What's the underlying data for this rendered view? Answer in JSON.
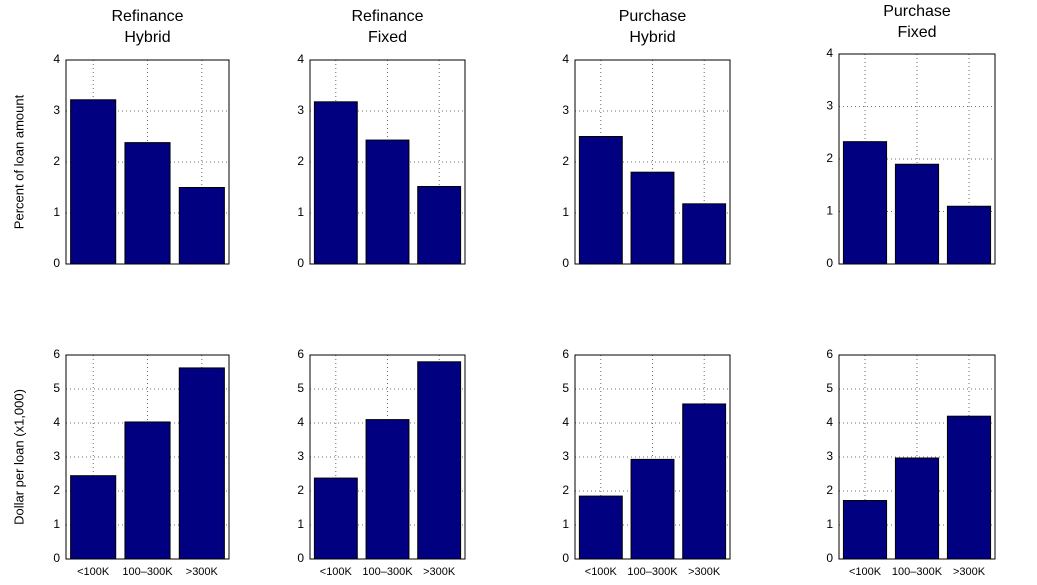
{
  "chart_data": [
    {
      "type": "bar",
      "title": [
        "Refinance",
        "Hybrid"
      ],
      "ylabel": "Percent of loan amount",
      "categories": [
        null,
        null,
        null
      ],
      "values": [
        3.22,
        2.38,
        1.5
      ],
      "color": "#000080",
      "ylim": [
        0,
        4
      ],
      "yticks": [
        0,
        1,
        2,
        3,
        4
      ],
      "grid": true
    },
    {
      "type": "bar",
      "title": [
        "Refinance",
        "Fixed"
      ],
      "categories": [
        null,
        null,
        null
      ],
      "values": [
        3.18,
        2.43,
        1.52
      ],
      "color": "#000080",
      "ylim": [
        0,
        4
      ],
      "yticks": [
        0,
        1,
        2,
        3,
        4
      ],
      "grid": true
    },
    {
      "type": "bar",
      "title": [
        "Purchase",
        "Hybrid"
      ],
      "categories": [
        null,
        null,
        null
      ],
      "values": [
        2.5,
        1.8,
        1.18
      ],
      "color": "#000080",
      "ylim": [
        0,
        4
      ],
      "yticks": [
        0,
        1,
        2,
        3,
        4
      ],
      "grid": true
    },
    {
      "type": "bar",
      "title": [
        "Purchase",
        "Fixed"
      ],
      "categories": [
        null,
        null,
        null
      ],
      "values": [
        2.33,
        1.9,
        1.1
      ],
      "color": "#000080",
      "ylim": [
        0,
        4
      ],
      "yticks": [
        0,
        1,
        2,
        3,
        4
      ],
      "grid": true
    },
    {
      "type": "bar",
      "ylabel": "Dollar per loan (x1,000)",
      "categories": [
        "<100K",
        "100–300K",
        ">300K"
      ],
      "values": [
        2.45,
        4.03,
        5.62
      ],
      "color": "#000080",
      "ylim": [
        0,
        6
      ],
      "yticks": [
        0,
        1,
        2,
        3,
        4,
        5,
        6
      ],
      "grid": true
    },
    {
      "type": "bar",
      "categories": [
        "<100K",
        "100–300K",
        ">300K"
      ],
      "values": [
        2.38,
        4.1,
        5.8
      ],
      "color": "#000080",
      "ylim": [
        0,
        6
      ],
      "yticks": [
        0,
        1,
        2,
        3,
        4,
        5,
        6
      ],
      "grid": true
    },
    {
      "type": "bar",
      "categories": [
        "<100K",
        "100–300K",
        ">300K"
      ],
      "values": [
        1.85,
        2.93,
        4.56
      ],
      "color": "#000080",
      "ylim": [
        0,
        6
      ],
      "yticks": [
        0,
        1,
        2,
        3,
        4,
        5,
        6
      ],
      "grid": true
    },
    {
      "type": "bar",
      "categories": [
        "<100K",
        "100–300K",
        ">300K"
      ],
      "values": [
        1.72,
        2.97,
        4.2
      ],
      "color": "#000080",
      "ylim": [
        0,
        6
      ],
      "yticks": [
        0,
        1,
        2,
        3,
        4,
        5,
        6
      ],
      "grid": true
    }
  ]
}
